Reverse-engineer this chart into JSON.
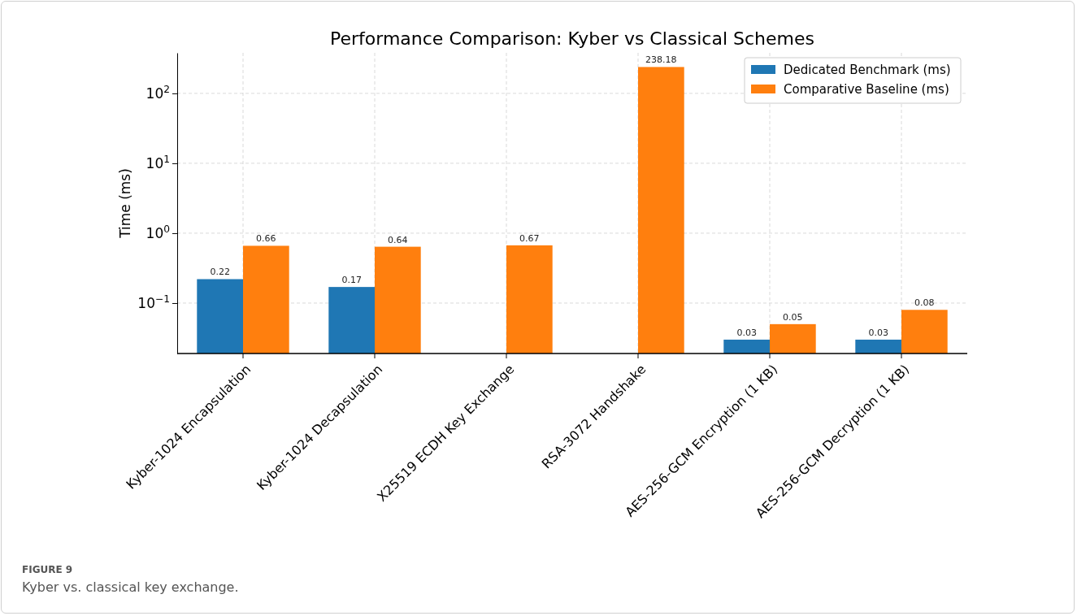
{
  "chart_data": {
    "type": "bar",
    "title": "Performance Comparison: Kyber vs Classical Schemes",
    "ylabel": "Time (ms)",
    "categories": [
      "Kyber-1024 Encapsulation",
      "Kyber-1024 Decapsulation",
      "X25519 ECDH Key Exchange",
      "RSA-3072 Handshake",
      "AES-256-GCM Encryption (1 KB)",
      "AES-256-GCM Decryption (1 KB)"
    ],
    "series": [
      {
        "name": "Dedicated Benchmark (ms)",
        "color": "#1f77b4",
        "values": [
          0.22,
          0.17,
          null,
          null,
          0.03,
          0.03
        ]
      },
      {
        "name": "Comparative Baseline (ms)",
        "color": "#ff7f0e",
        "values": [
          0.66,
          0.64,
          0.67,
          238.18,
          0.05,
          0.08
        ]
      }
    ],
    "log": true,
    "ylim": [
      0.019,
      380
    ],
    "yticks": [
      {
        "value": 0.1,
        "label": "10$^{−1}$"
      },
      {
        "value": 1,
        "label": "10$^{0}$"
      },
      {
        "value": 10,
        "label": "10$^{1}$"
      },
      {
        "value": 100,
        "label": "10$^{2}$"
      }
    ],
    "grid": true,
    "legend": "top right",
    "data_labels": true,
    "annotations": [
      "FIGURE 9",
      "Kyber vs. classical key exchange."
    ]
  }
}
